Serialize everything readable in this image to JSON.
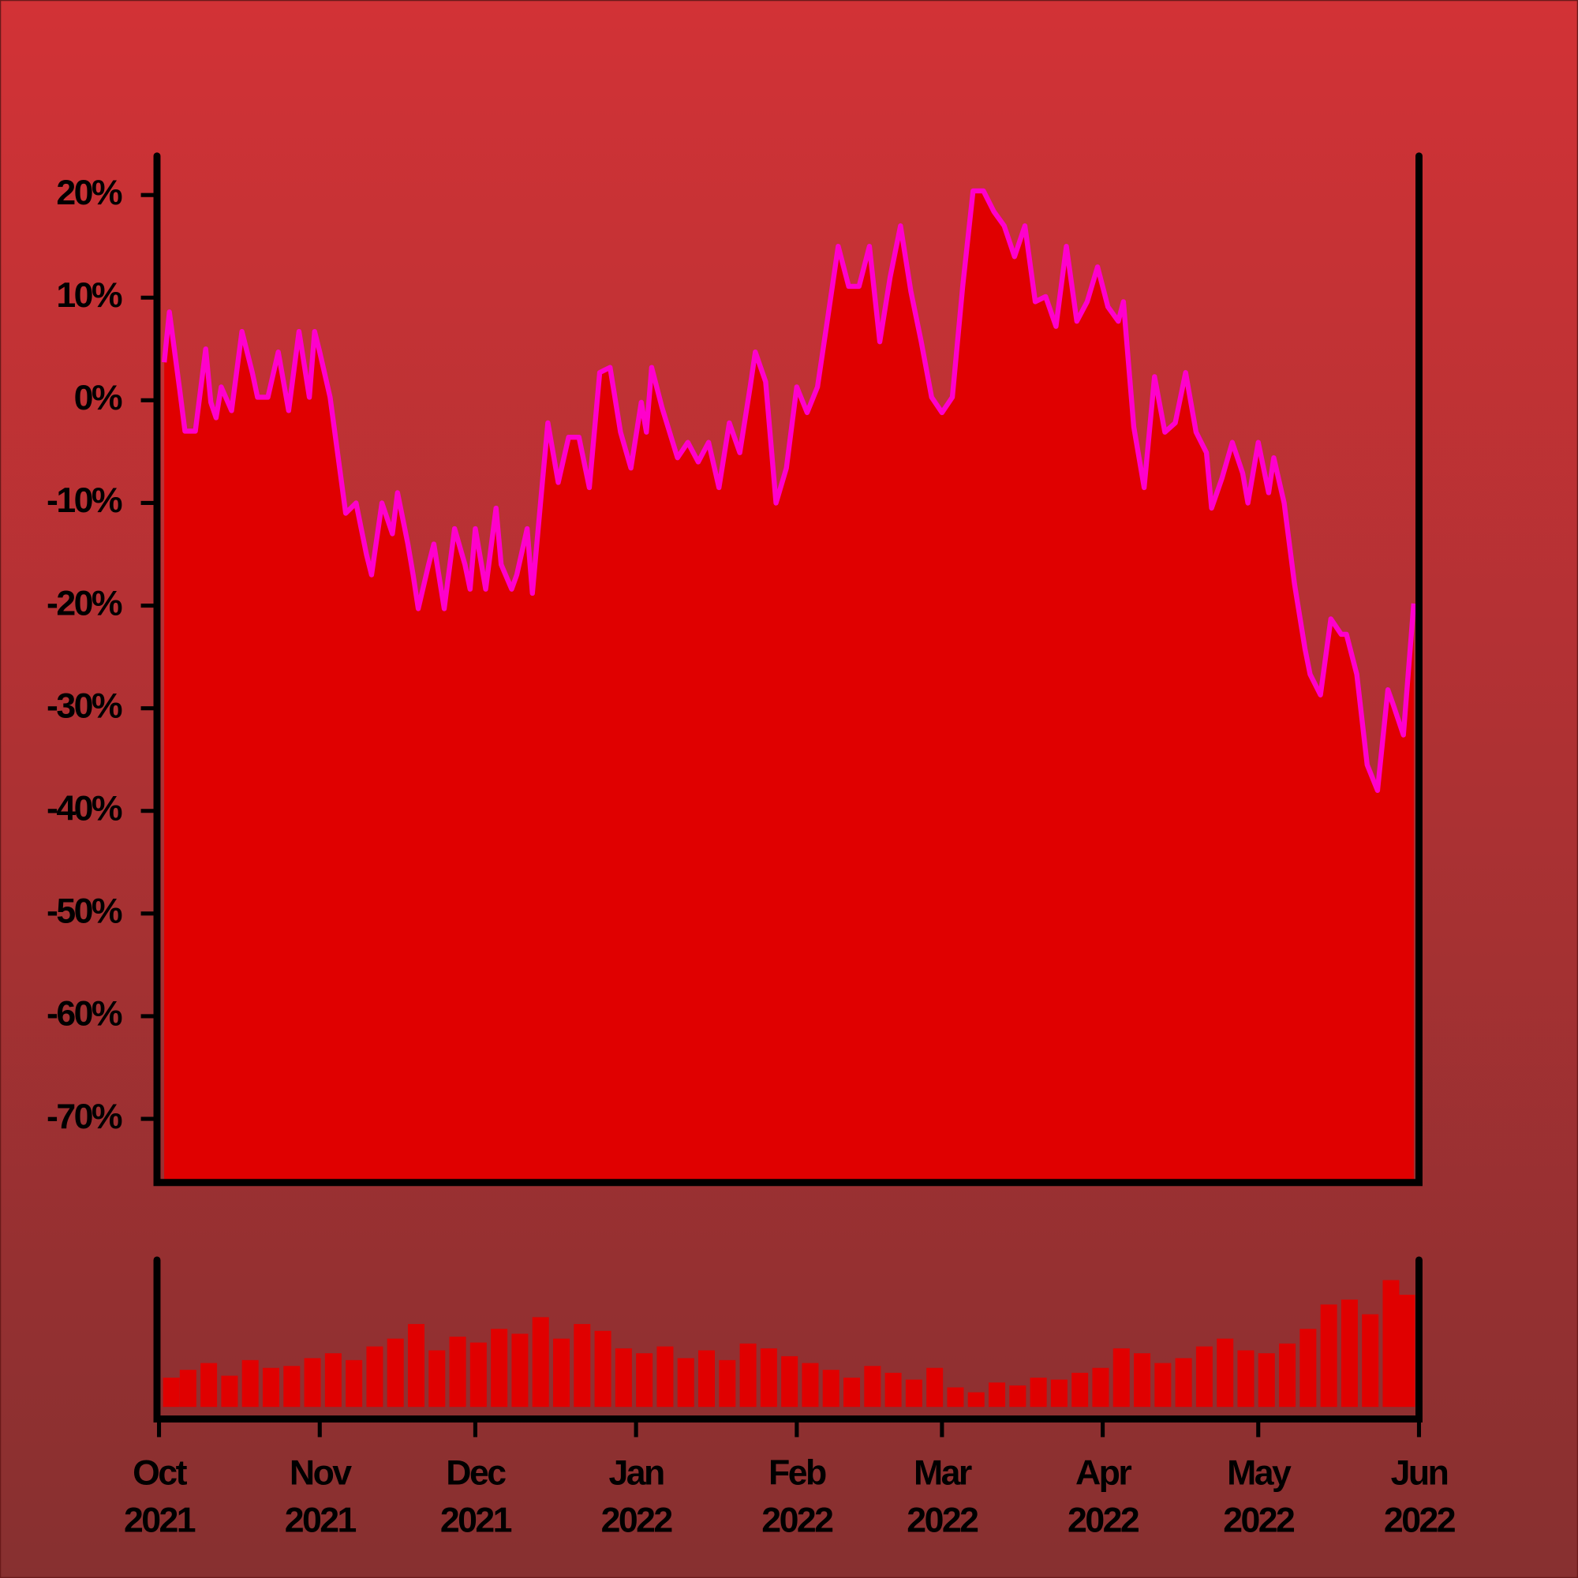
{
  "chart_data": [
    {
      "type": "area",
      "color": "#e00000",
      "line_color": "#ff00cc",
      "x": [
        1,
        2,
        4,
        5,
        7,
        9,
        10,
        11,
        12,
        14,
        16,
        18,
        19,
        21,
        23,
        25,
        27,
        29,
        30,
        31,
        33,
        36,
        38,
        40,
        41,
        43,
        45,
        46,
        48,
        49,
        50,
        52,
        53,
        55,
        57,
        59,
        60,
        61,
        63,
        65,
        66,
        68,
        69,
        71,
        72,
        74,
        75,
        77,
        79,
        81,
        83,
        85,
        87,
        89,
        91,
        93,
        94,
        95,
        97,
        100,
        102,
        104,
        106,
        108,
        110,
        112,
        114,
        115,
        117,
        119,
        121,
        123,
        125,
        127,
        129,
        131,
        133,
        135,
        137,
        139,
        141,
        143,
        145,
        147,
        149,
        151,
        153,
        155,
        157,
        159,
        161,
        163,
        165,
        167,
        169,
        171,
        173,
        175,
        177,
        179,
        181,
        183,
        185,
        186,
        188,
        190,
        192,
        194,
        196,
        198,
        200,
        202,
        203,
        205,
        207,
        209,
        210,
        212,
        214,
        215,
        217,
        219,
        221,
        222,
        224,
        226,
        228,
        229,
        231,
        233,
        235,
        237,
        238,
        240,
        242
      ],
      "values": [
        3.7,
        8.6,
        1,
        -3,
        -3,
        5,
        -0.2,
        -1.7,
        1.3,
        -1,
        6.7,
        2.7,
        0.3,
        0.3,
        4.7,
        -1,
        6.7,
        0.3,
        6.7,
        4.7,
        0.3,
        -11,
        -10,
        -15,
        -17,
        -10,
        -13,
        -9,
        -14,
        -17,
        -20.3,
        -16,
        -14,
        -20.3,
        -12.5,
        -16,
        -18.4,
        -12.5,
        -18.4,
        -10.5,
        -16,
        -18.4,
        -17,
        -12.5,
        -18.8,
        -7.6,
        -2.2,
        -8,
        -3.6,
        -3.6,
        -8.5,
        2.7,
        3.2,
        -3.1,
        -6.6,
        -0.2,
        -3.1,
        3.2,
        -0.7,
        -5.6,
        -4.1,
        -6,
        -4.1,
        -8.5,
        -2.2,
        -5.1,
        1.3,
        4.7,
        1.8,
        -10,
        -6.6,
        1.3,
        -1.2,
        1.3,
        8.1,
        15,
        11.1,
        11.1,
        15,
        5.7,
        12,
        17,
        10.6,
        5.7,
        0.3,
        -1.2,
        0.3,
        11.1,
        20.4,
        20.4,
        18.4,
        17,
        14,
        17,
        9.6,
        10.1,
        7.2,
        15,
        7.7,
        9.6,
        13,
        9.1,
        7.7,
        9.6,
        -2.6,
        -8.5,
        2.3,
        -3.1,
        -2.2,
        2.7,
        -3.1,
        -5.1,
        -10.5,
        -7.6,
        -4.1,
        -7.1,
        -10,
        -4.1,
        -9,
        -5.6,
        -10,
        -17.9,
        -24.2,
        -26.7,
        -28.7,
        -21.3,
        -22.8,
        -22.8,
        -26.7,
        -35.5,
        -38,
        -28.2,
        -29.6,
        -32.6,
        -19.8
      ],
      "xlim": [
        0,
        243
      ],
      "ylim": [
        -76.2,
        23.8
      ],
      "yticks": [
        {
          "value": 20,
          "label": "20%"
        },
        {
          "value": 10,
          "label": "10%"
        },
        {
          "value": 0,
          "label": "0%"
        },
        {
          "value": -10,
          "label": "-10%"
        },
        {
          "value": -20,
          "label": "-20%"
        },
        {
          "value": -30,
          "label": "-30%"
        },
        {
          "value": -40,
          "label": "-40%"
        },
        {
          "value": -50,
          "label": "-50%"
        },
        {
          "value": -60,
          "label": "-60%"
        },
        {
          "value": -70,
          "label": "-70%"
        }
      ]
    },
    {
      "type": "bar",
      "color": "#e00000",
      "x": [
        0,
        4,
        8,
        12,
        16,
        20,
        24,
        28,
        32,
        36,
        40,
        44,
        48,
        52,
        56,
        60,
        64,
        68,
        72,
        76,
        80,
        84,
        88,
        92,
        96,
        100,
        104,
        108,
        112,
        116,
        120,
        124,
        128,
        132,
        136,
        140,
        144,
        148,
        152,
        156,
        160,
        164,
        168,
        172,
        176,
        180,
        184,
        188,
        192,
        196,
        200,
        204,
        208,
        212,
        216,
        220,
        224,
        228,
        232,
        236,
        240
      ],
      "values": [
        30,
        38,
        45,
        32,
        48,
        40,
        42,
        50,
        55,
        48,
        62,
        70,
        85,
        58,
        72,
        66,
        80,
        75,
        92,
        70,
        85,
        78,
        60,
        55,
        62,
        50,
        58,
        48,
        65,
        60,
        52,
        45,
        38,
        30,
        42,
        35,
        28,
        40,
        20,
        15,
        25,
        22,
        30,
        28,
        35,
        40,
        60,
        55,
        45,
        50,
        62,
        70,
        58,
        55,
        65,
        80,
        105,
        110,
        95,
        130,
        115
      ],
      "xlim": [
        0,
        243
      ],
      "xticks": [
        {
          "value": 0,
          "label": "Oct 2021"
        },
        {
          "value": 31,
          "label": "Nov 2021"
        },
        {
          "value": 61,
          "label": "Dec 2021"
        },
        {
          "value": 92,
          "label": "Jan 2022"
        },
        {
          "value": 123,
          "label": "Feb 2022"
        },
        {
          "value": 151,
          "label": "Mar 2022"
        },
        {
          "value": 182,
          "label": "Apr 2022"
        },
        {
          "value": 212,
          "label": "May 2022"
        },
        {
          "value": 243,
          "label": "Jun 2022"
        }
      ]
    }
  ]
}
